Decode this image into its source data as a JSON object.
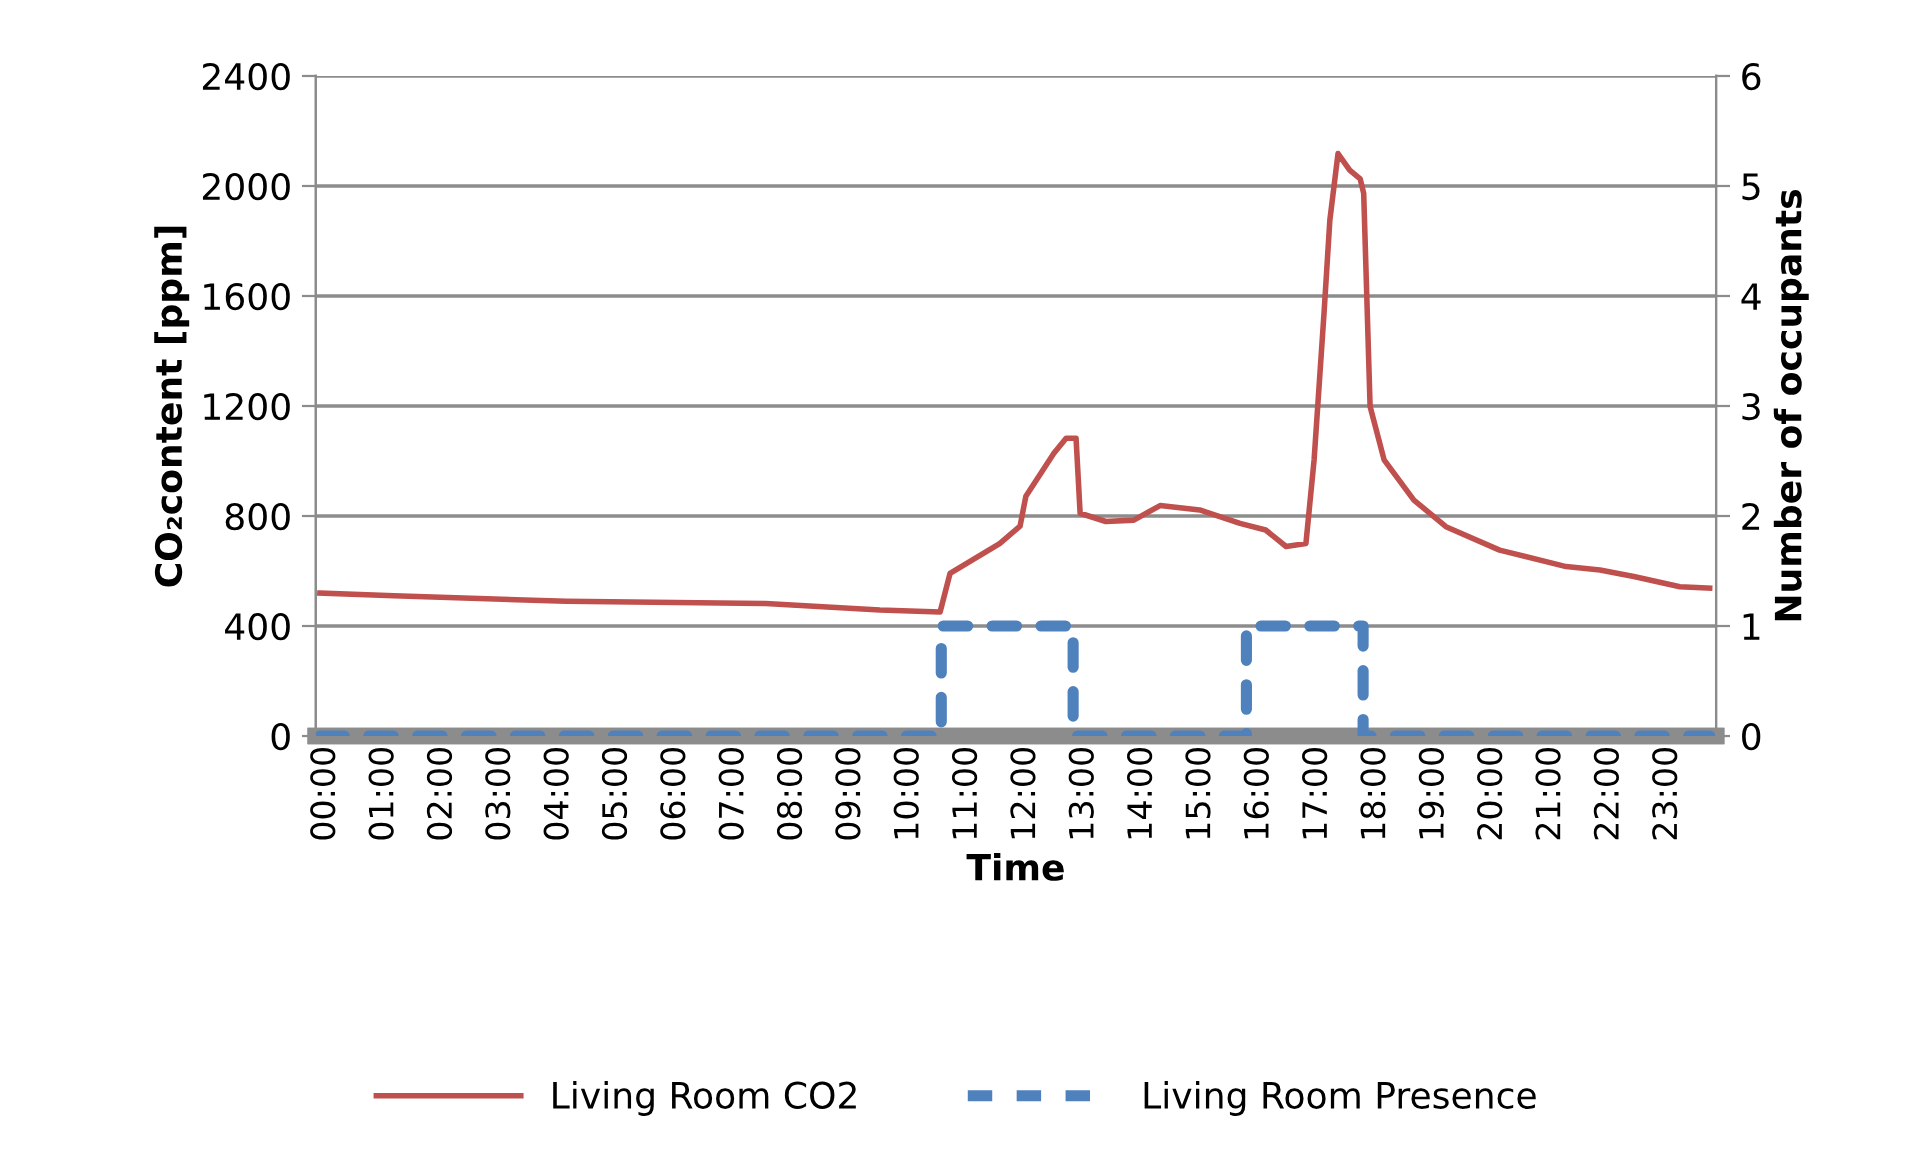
{
  "chart_data": {
    "type": "line",
    "xlabel": "Time",
    "ylabel": "CO₂content [ppm]",
    "y2label": "Number of occupants",
    "xlim": [
      -0.17,
      23.83
    ],
    "xticks": [
      {
        "value": 0,
        "label": "00:00"
      },
      {
        "value": 1,
        "label": "01:00"
      },
      {
        "value": 2,
        "label": "02:00"
      },
      {
        "value": 3,
        "label": "03:00"
      },
      {
        "value": 4,
        "label": "04:00"
      },
      {
        "value": 5,
        "label": "05:00"
      },
      {
        "value": 6,
        "label": "06:00"
      },
      {
        "value": 7,
        "label": "07:00"
      },
      {
        "value": 8,
        "label": "08:00"
      },
      {
        "value": 9,
        "label": "09:00"
      },
      {
        "value": 10,
        "label": "10:00"
      },
      {
        "value": 11,
        "label": "11:00"
      },
      {
        "value": 12,
        "label": "12:00"
      },
      {
        "value": 13,
        "label": "13:00"
      },
      {
        "value": 14,
        "label": "14:00"
      },
      {
        "value": 15,
        "label": "15:00"
      },
      {
        "value": 16,
        "label": "16:00"
      },
      {
        "value": 17,
        "label": "17:00"
      },
      {
        "value": 18,
        "label": "18:00"
      },
      {
        "value": 19,
        "label": "19:00"
      },
      {
        "value": 20,
        "label": "20:00"
      },
      {
        "value": 21,
        "label": "21:00"
      },
      {
        "value": 22,
        "label": "22:00"
      },
      {
        "value": 23,
        "label": "23:00"
      }
    ],
    "ylim": [
      0,
      2400
    ],
    "yticks": [
      0,
      400,
      800,
      1200,
      1600,
      2000,
      2400
    ],
    "y2lim": [
      0,
      6
    ],
    "y2ticks": [
      0,
      1,
      2,
      3,
      4,
      5,
      6
    ],
    "grid": "y",
    "legend": "bottom",
    "marker": "none",
    "series": [
      {
        "name": "Living Room CO2",
        "color": "#c0504d",
        "line_style": "solid",
        "x": [
          -0.1,
          1.17,
          4.12,
          7.54,
          9.5,
          10.53,
          10.7,
          11.55,
          11.9,
          12.0,
          12.48,
          12.69,
          12.86,
          12.93,
          13.37,
          13.85,
          14.3,
          14.98,
          15.67,
          16.11,
          16.46,
          16.8,
          16.94,
          17.11,
          17.21,
          17.35,
          17.55,
          17.73,
          17.79,
          17.9,
          18.14,
          18.65,
          19.2,
          20.12,
          21.26,
          21.84,
          22.42,
          23.21,
          23.72
        ],
        "values": [
          520,
          510,
          490,
          482,
          458,
          451,
          591,
          700,
          763,
          872,
          1028,
          1083,
          1083,
          810,
          780,
          785,
          838,
          822,
          773,
          749,
          689,
          700,
          1004,
          1537,
          1876,
          2118,
          2058,
          2026,
          1973,
          1198,
          1004,
          858,
          761,
          676,
          616,
          604,
          580,
          543,
          538
        ]
      },
      {
        "name": "Living Room Presence",
        "color": "#4f81bd",
        "type": "step",
        "axis": "y2",
        "line_style": "dashed",
        "x": [
          -0.1,
          10.55,
          12.81,
          15.78,
          17.78,
          23.72
        ],
        "values": [
          0,
          1,
          0,
          1,
          0,
          0
        ]
      }
    ]
  }
}
